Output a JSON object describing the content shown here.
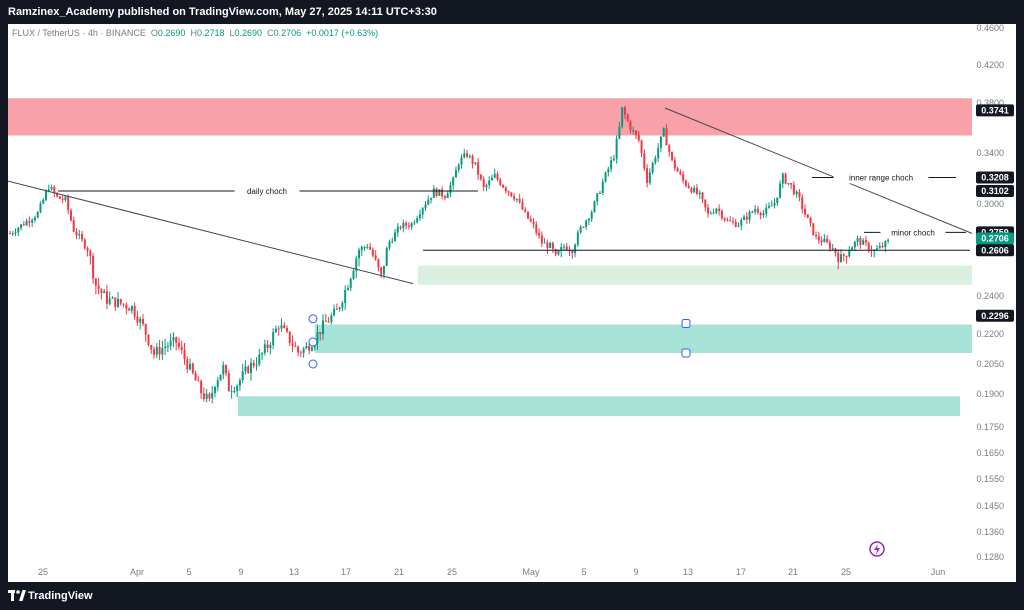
{
  "header": {
    "publisher": "Ramzinex_Academy published on TradingView.com, May 27, 2025 14:11 UTC+3:30"
  },
  "legend": {
    "symbol": "FLUX / TetherUS · 4h · BINANCE",
    "open_label": "O",
    "open": "0.2690",
    "high_label": "H",
    "high": "0.2718",
    "low_label": "L",
    "low": "0.2690",
    "close_label": "C",
    "close": "0.2706",
    "change": "+0.0017 (+0.63%)"
  },
  "footer": {
    "brand": "TradingView"
  },
  "chart_data": {
    "type": "candlestick",
    "ylim": [
      0.128,
      0.46
    ],
    "y_ticks": [
      "0.4600",
      "0.4200",
      "0.3800",
      "0.3400",
      "0.3000",
      "0.2600",
      "0.2400",
      "0.2200",
      "0.2050",
      "0.1900",
      "0.1750",
      "0.1650",
      "0.1550",
      "0.1450",
      "0.1360",
      "0.1280"
    ],
    "x_ticks": [
      "25",
      "Apr",
      "5",
      "9",
      "13",
      "17",
      "21",
      "25",
      "May",
      "5",
      "9",
      "13",
      "17",
      "21",
      "25",
      "Jun"
    ],
    "price_labels": [
      {
        "value": "0.3741",
        "style": "dark"
      },
      {
        "value": "0.3208",
        "style": "dark"
      },
      {
        "value": "0.3102",
        "style": "dark"
      },
      {
        "value": "0.2759",
        "style": "dark"
      },
      {
        "value": "0.2706",
        "style": "green"
      },
      {
        "value": "0.2606",
        "style": "dark"
      },
      {
        "value": "0.2296",
        "style": "dark"
      }
    ],
    "annotations": [
      "daily choch",
      "inner range choch",
      "minor choch"
    ],
    "zones": [
      {
        "kind": "supply",
        "top": 0.385,
        "bottom": 0.354,
        "color": "#f8a1a8"
      },
      {
        "kind": "demand",
        "top": 0.2535,
        "bottom": 0.245,
        "color": "#d9efdf"
      },
      {
        "kind": "demand",
        "top": 0.225,
        "bottom": 0.2105,
        "color": "#a6e3d6"
      },
      {
        "kind": "demand",
        "top": 0.189,
        "bottom": 0.18,
        "color": "#a6e3d6"
      }
    ],
    "path": [
      [
        0,
        0.275
      ],
      [
        10,
        0.292
      ],
      [
        14,
        0.314
      ],
      [
        17,
        0.305
      ],
      [
        20,
        0.303
      ],
      [
        23,
        0.278
      ],
      [
        28,
        0.262
      ],
      [
        31,
        0.245
      ],
      [
        35,
        0.238
      ],
      [
        40,
        0.236
      ],
      [
        44,
        0.234
      ],
      [
        48,
        0.224
      ],
      [
        52,
        0.21
      ],
      [
        56,
        0.214
      ],
      [
        60,
        0.216
      ],
      [
        64,
        0.205
      ],
      [
        69,
        0.191
      ],
      [
        72,
        0.186
      ],
      [
        74,
        0.196
      ],
      [
        77,
        0.203
      ],
      [
        79,
        0.193
      ],
      [
        82,
        0.195
      ],
      [
        86,
        0.203
      ],
      [
        90,
        0.208
      ],
      [
        93,
        0.214
      ],
      [
        97,
        0.225
      ],
      [
        100,
        0.219
      ],
      [
        104,
        0.211
      ],
      [
        107,
        0.213
      ],
      [
        110,
        0.218
      ],
      [
        114,
        0.226
      ],
      [
        118,
        0.232
      ],
      [
        122,
        0.246
      ],
      [
        126,
        0.261
      ],
      [
        129,
        0.265
      ],
      [
        131,
        0.258
      ],
      [
        134,
        0.248
      ],
      [
        137,
        0.268
      ],
      [
        141,
        0.281
      ],
      [
        145,
        0.283
      ],
      [
        149,
        0.298
      ],
      [
        153,
        0.31
      ],
      [
        157,
        0.307
      ],
      [
        160,
        0.318
      ],
      [
        162,
        0.333
      ],
      [
        165,
        0.339
      ],
      [
        168,
        0.33
      ],
      [
        171,
        0.312
      ],
      [
        175,
        0.322
      ],
      [
        179,
        0.312
      ],
      [
        183,
        0.304
      ],
      [
        186,
        0.291
      ],
      [
        189,
        0.281
      ],
      [
        192,
        0.267
      ],
      [
        195,
        0.264
      ],
      [
        197,
        0.256
      ],
      [
        200,
        0.264
      ],
      [
        203,
        0.262
      ],
      [
        206,
        0.279
      ],
      [
        210,
        0.294
      ],
      [
        214,
        0.317
      ],
      [
        218,
        0.338
      ],
      [
        220,
        0.36
      ],
      [
        221,
        0.375
      ],
      [
        224,
        0.36
      ],
      [
        227,
        0.35
      ],
      [
        230,
        0.319
      ],
      [
        233,
        0.338
      ],
      [
        236,
        0.357
      ],
      [
        239,
        0.333
      ],
      [
        243,
        0.318
      ],
      [
        246,
        0.312
      ],
      [
        249,
        0.306
      ],
      [
        252,
        0.291
      ],
      [
        255,
        0.297
      ],
      [
        259,
        0.285
      ],
      [
        263,
        0.283
      ],
      [
        266,
        0.289
      ],
      [
        269,
        0.296
      ],
      [
        272,
        0.292
      ],
      [
        276,
        0.301
      ],
      [
        279,
        0.321
      ],
      [
        282,
        0.314
      ],
      [
        285,
        0.303
      ],
      [
        288,
        0.286
      ],
      [
        291,
        0.271
      ],
      [
        294,
        0.268
      ],
      [
        297,
        0.262
      ],
      [
        300,
        0.256
      ],
      [
        303,
        0.262
      ],
      [
        306,
        0.269
      ],
      [
        309,
        0.265
      ],
      [
        312,
        0.26
      ],
      [
        315,
        0.264
      ],
      [
        318,
        0.27
      ]
    ]
  }
}
